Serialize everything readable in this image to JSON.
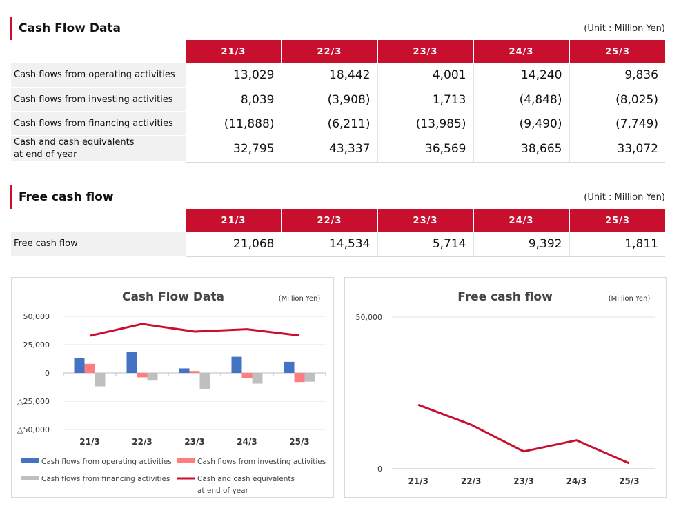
{
  "section1": {
    "title": "Cash Flow Data",
    "unit": "(Unit : Million Yen)"
  },
  "section2": {
    "title": "Free cash flow",
    "unit": "(Unit : Million Yen)"
  },
  "years": [
    "21/3",
    "22/3",
    "23/3",
    "24/3",
    "25/3"
  ],
  "cash_flow_table": [
    {
      "label": "Cash flows from operating activities",
      "values": [
        "13,029",
        "18,442",
        "4,001",
        "14,240",
        "9,836"
      ]
    },
    {
      "label": "Cash flows from investing activities",
      "values": [
        "8,039",
        "(3,908)",
        "1,713",
        "(4,848)",
        "(8,025)"
      ]
    },
    {
      "label": "Cash flows from financing activities",
      "values": [
        "(11,888)",
        "(6,211)",
        "(13,985)",
        "(9,490)",
        "(7,749)"
      ]
    },
    {
      "label": "Cash and cash equivalents\nat end of year",
      "values": [
        "32,795",
        "43,337",
        "36,569",
        "38,665",
        "33,072"
      ]
    }
  ],
  "fcf_table": [
    {
      "label": "Free cash flow",
      "values": [
        "21,068",
        "14,534",
        "5,714",
        "9,392",
        "1,811"
      ]
    }
  ],
  "colors": {
    "accent": "#c8102e",
    "operating": "#4472c4",
    "investing": "#ff7c80",
    "financing": "#bfbfbf",
    "cash": "#c8102e"
  },
  "chart_data": [
    {
      "type": "bar",
      "title": "Cash Flow Data",
      "unit_label": "(Million Yen)",
      "categories": [
        "21/3",
        "22/3",
        "23/3",
        "24/3",
        "25/3"
      ],
      "ylim": [
        -50000,
        50000
      ],
      "yticks": [
        50000,
        25000,
        0,
        -25000,
        -50000
      ],
      "ytick_labels": [
        "50,000",
        "25,000",
        "0",
        "△25,000",
        "△50,000"
      ],
      "series": [
        {
          "name": "Cash flows from operating activities",
          "kind": "bar",
          "color": "#4472c4",
          "values": [
            13029,
            18442,
            4001,
            14240,
            9836
          ]
        },
        {
          "name": "Cash flows from investing activities",
          "kind": "bar",
          "color": "#ff7c80",
          "values": [
            8039,
            -3908,
            1713,
            -4848,
            -8025
          ]
        },
        {
          "name": "Cash flows from financing activities",
          "kind": "bar",
          "color": "#bfbfbf",
          "values": [
            -11888,
            -6211,
            -13985,
            -9490,
            -7749
          ]
        },
        {
          "name": "Cash and cash equivalents at end of year",
          "kind": "line",
          "color": "#c8102e",
          "values": [
            32795,
            43337,
            36569,
            38665,
            33072
          ]
        }
      ],
      "legend": [
        {
          "label": "Cash flows from operating activities",
          "color": "#4472c4",
          "kind": "bar"
        },
        {
          "label": "Cash flows from investing activities",
          "color": "#ff7c80",
          "kind": "bar"
        },
        {
          "label": "Cash flows from financing activities",
          "color": "#bfbfbf",
          "kind": "bar"
        },
        {
          "label": "Cash and cash equivalents",
          "label2": "at end of year",
          "color": "#c8102e",
          "kind": "line"
        }
      ]
    },
    {
      "type": "line",
      "title": "Free cash flow",
      "unit_label": "(Million Yen)",
      "categories": [
        "21/3",
        "22/3",
        "23/3",
        "24/3",
        "25/3"
      ],
      "ylim": [
        0,
        50000
      ],
      "yticks": [
        50000,
        0
      ],
      "ytick_labels": [
        "50,000",
        "0"
      ],
      "series": [
        {
          "name": "Free cash flow",
          "kind": "line",
          "color": "#c8102e",
          "values": [
            21068,
            14534,
            5714,
            9392,
            1811
          ]
        }
      ]
    }
  ]
}
